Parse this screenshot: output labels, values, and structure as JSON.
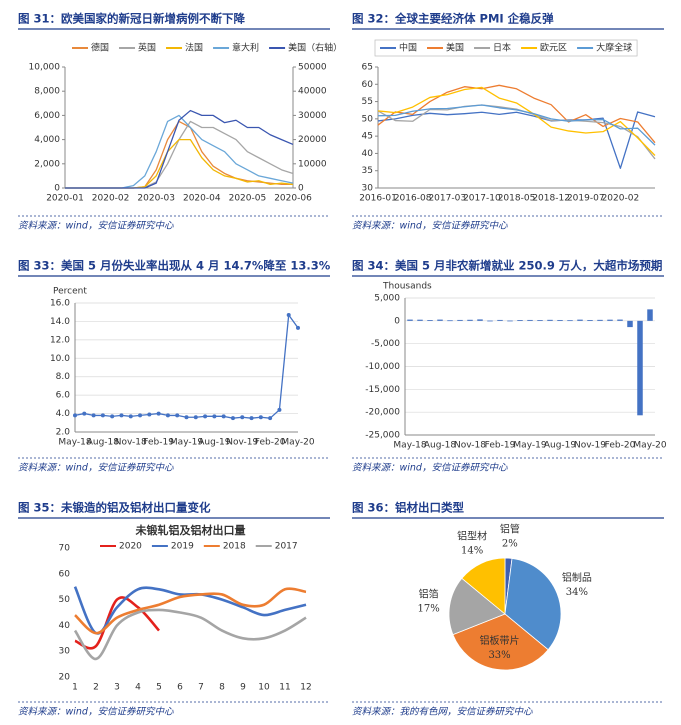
{
  "figures": [
    {
      "title": "图 31：欧美国家的新冠日新增病例不断下降",
      "source": "资料来源：wind，安信证券研究中心",
      "chart_data": {
        "type": "line",
        "legend": "top",
        "grid": false,
        "categories": [
          "2020-01",
          null,
          null,
          null,
          "2020-02",
          null,
          null,
          null,
          "2020-03",
          null,
          null,
          null,
          "2020-04",
          null,
          null,
          null,
          "2020-05",
          null,
          null,
          null,
          "2020-06"
        ],
        "ylim": [
          0,
          10000
        ],
        "yticks": [
          0,
          {
            "value": 2000,
            "label": "2,000"
          },
          {
            "value": 4000,
            "label": "4,000"
          },
          {
            "value": 6000,
            "label": "6,000"
          },
          {
            "value": 8000,
            "label": "8,000"
          },
          {
            "value": 10000,
            "label": "10,000"
          }
        ],
        "y2lim": [
          0,
          50000
        ],
        "y2ticks": [
          0,
          10000,
          20000,
          30000,
          40000,
          50000
        ],
        "series": [
          {
            "name": "德国",
            "color": "#e8893c",
            "values": [
              0,
              0,
              0,
              0,
              0,
              0,
              0,
              100,
              1500,
              4000,
              5500,
              5000,
              3000,
              1800,
              1200,
              800,
              600,
              500,
              400,
              300,
              300
            ]
          },
          {
            "name": "英国",
            "color": "#a6a6a6",
            "values": [
              0,
              0,
              0,
              0,
              0,
              0,
              0,
              50,
              500,
              2000,
              4000,
              5500,
              5000,
              5000,
              4500,
              4000,
              3000,
              2500,
              2000,
              1500,
              1200
            ]
          },
          {
            "name": "法国",
            "color": "#f2b705",
            "values": [
              0,
              0,
              0,
              0,
              0,
              0,
              0,
              100,
              1000,
              3000,
              4000,
              4000,
              2500,
              1500,
              1000,
              800,
              500,
              600,
              300,
              400,
              300
            ]
          },
          {
            "name": "意大利",
            "color": "#6aa7d8",
            "values": [
              0,
              0,
              0,
              0,
              0,
              0,
              200,
              1000,
              3000,
              5500,
              6000,
              5000,
              4000,
              3500,
              3000,
              2000,
              1500,
              1000,
              800,
              600,
              400
            ]
          },
          {
            "name": "美国（右轴）",
            "color": "#3a56b0",
            "axis": "y2",
            "values": [
              0,
              0,
              0,
              0,
              0,
              0,
              0,
              0,
              2000,
              15000,
              28000,
              32000,
              30000,
              30000,
              27000,
              28000,
              25000,
              25000,
              22000,
              20000,
              18000
            ]
          }
        ]
      }
    },
    {
      "title": "图 32：全球主要经济体 PMI 企稳反弹",
      "source": "资料来源：wind，安信证券研究中心",
      "chart_data": {
        "type": "line",
        "legend": "top",
        "grid": false,
        "categories": [
          "2016-01",
          null,
          "2016-08",
          null,
          "2017-03",
          null,
          "2017-10",
          null,
          "2018-05",
          null,
          "2018-12",
          null,
          "2019-07",
          null,
          "2020-02",
          null,
          null
        ],
        "ylim": [
          30,
          65
        ],
        "yticks": [
          30,
          35,
          40,
          45,
          50,
          55,
          60,
          65
        ],
        "series": [
          {
            "name": "中国",
            "color": "#4472c4",
            "values": [
              49.4,
              50.0,
              51.0,
              51.6,
              51.2,
              51.5,
              51.9,
              51.3,
              51.9,
              50.8,
              49.4,
              49.7,
              49.7,
              50.2,
              35.7,
              52.0,
              50.6
            ]
          },
          {
            "name": "美国",
            "color": "#ed7d31",
            "values": [
              48.2,
              52.0,
              51.3,
              55.0,
              57.7,
              59.3,
              58.7,
              59.7,
              58.7,
              56.0,
              54.1,
              49.1,
              51.2,
              47.8,
              50.1,
              49.1,
              43.1
            ]
          },
          {
            "name": "日本",
            "color": "#a5a5a5",
            "values": [
              52.3,
              49.5,
              49.3,
              52.7,
              52.6,
              53.6,
              54.0,
              53.5,
              52.8,
              51.3,
              49.5,
              49.6,
              49.3,
              48.9,
              47.8,
              44.8,
              38.4
            ]
          },
          {
            "name": "欧元区",
            "color": "#ffc000",
            "values": [
              52.3,
              51.8,
              53.4,
              56.2,
              57.0,
              58.5,
              59.1,
              56.0,
              54.6,
              51.4,
              47.6,
              46.5,
              45.9,
              46.3,
              49.2,
              44.5,
              39.4
            ]
          },
          {
            "name": "大摩全球",
            "color": "#5b9bd5",
            "values": [
              50.9,
              51.0,
              52.2,
              52.9,
              53.0,
              53.5,
              54.0,
              53.2,
              52.6,
              51.5,
              50.0,
              49.3,
              49.7,
              49.8,
              47.1,
              47.3,
              42.4
            ]
          }
        ]
      }
    },
    {
      "title": "图 33：美国 5 月份失业率出现从 4 月 14.7%降至 13.3%",
      "source": "资料来源：wind，安信证券研究中心",
      "chart_data": {
        "type": "line",
        "grid": true,
        "markers": true,
        "ylabel": "Percent",
        "categories": [
          "May-18",
          null,
          null,
          "Aug-18",
          null,
          null,
          "Nov-18",
          null,
          null,
          "Feb-19",
          null,
          null,
          "May-19",
          null,
          null,
          "Aug-19",
          null,
          null,
          "Nov-19",
          null,
          null,
          "Feb-20",
          null,
          null,
          "May-20"
        ],
        "ylim": [
          2,
          16
        ],
        "yticks": [
          {
            "value": 2,
            "label": "2.0"
          },
          {
            "value": 4,
            "label": "4.0"
          },
          {
            "value": 6,
            "label": "6.0"
          },
          {
            "value": 8,
            "label": "8.0"
          },
          {
            "value": 10,
            "label": "10.0"
          },
          {
            "value": 12,
            "label": "12.0"
          },
          {
            "value": 14,
            "label": "14.0"
          },
          {
            "value": 16,
            "label": "16.0"
          }
        ],
        "series": [
          {
            "color": "#4472c4",
            "values": [
              3.8,
              4.0,
              3.8,
              3.8,
              3.7,
              3.8,
              3.7,
              3.8,
              3.9,
              4.0,
              3.8,
              3.8,
              3.6,
              3.6,
              3.7,
              3.7,
              3.7,
              3.5,
              3.6,
              3.5,
              3.6,
              3.5,
              4.4,
              14.7,
              13.3
            ]
          }
        ]
      }
    },
    {
      "title": "图 34：美国 5 月非农新增就业 250.9 万人，大超市场预期",
      "source": "资料来源：wind，安信证券研究中心",
      "chart_data": {
        "type": "bar",
        "grid": true,
        "ylabel": "Thousands",
        "color": "#4472c4",
        "categories": [
          "May-18",
          null,
          null,
          "Aug-18",
          null,
          null,
          "Nov-18",
          null,
          null,
          "Feb-19",
          null,
          null,
          "May-19",
          null,
          null,
          "Aug-19",
          null,
          null,
          "Nov-19",
          null,
          null,
          "Feb-20",
          null,
          null,
          "May-20"
        ],
        "values": [
          270,
          248,
          178,
          270,
          118,
          196,
          227,
          312,
          56,
          196,
          62,
          178,
          193,
          168,
          219,
          185,
          131,
          261,
          184,
          214,
          251,
          273,
          -1373,
          -20687,
          2509
        ],
        "ylim": [
          -25000,
          5000
        ],
        "yticks": [
          {
            "value": -25000,
            "label": "-25,000"
          },
          {
            "value": -20000,
            "label": "-20,000"
          },
          {
            "value": -15000,
            "label": "-15,000"
          },
          {
            "value": -10000,
            "label": "-10,000"
          },
          {
            "value": -5000,
            "label": "-5,000"
          },
          0,
          {
            "value": 5000,
            "label": "5,000"
          }
        ]
      }
    },
    {
      "title": "图 35：未锻造的铝及铝材出口量变化",
      "source": "资料来源：wind，安信证券研究中心",
      "chart_data": {
        "type": "line",
        "title": "未锻轧铝及铝材出口量",
        "legend": "top",
        "grid": false,
        "smooth": true,
        "categories": [
          "1",
          "2",
          "3",
          "4",
          "5",
          "6",
          "7",
          "8",
          "9",
          "10",
          "11",
          "12"
        ],
        "ylim": [
          20,
          70
        ],
        "yticks": [
          20,
          30,
          40,
          50,
          60,
          70
        ],
        "series": [
          {
            "name": "2020",
            "color": "#e3211c",
            "values": [
              34,
              32,
              50,
              47,
              38,
              null,
              null,
              null,
              null,
              null,
              null,
              null
            ]
          },
          {
            "name": "2019",
            "color": "#4472c4",
            "values": [
              55,
              37,
              47,
              54,
              54,
              52,
              52,
              50,
              47,
              44,
              46,
              48
            ]
          },
          {
            "name": "2018",
            "color": "#ed7d31",
            "values": [
              44,
              37,
              43,
              46,
              48,
              51,
              52,
              52,
              48,
              48,
              54,
              53
            ]
          },
          {
            "name": "2017",
            "color": "#a5a5a5",
            "values": [
              38,
              27,
              40,
              45,
              46,
              45,
              43,
              38,
              35,
              35,
              38,
              43
            ]
          }
        ]
      }
    },
    {
      "title": "图 36：铝材出口类型",
      "source": "资料来源：我的有色网，安信证券研究中心",
      "chart_data": {
        "type": "pie",
        "categories": [
          "铝管",
          "铝制品",
          "铝板带片",
          "铝箔",
          "铝型材"
        ],
        "values": [
          2,
          34,
          33,
          17,
          14
        ],
        "value_labels": [
          "2%",
          "34%",
          "33%",
          "17%",
          "14%"
        ],
        "colors": [
          "#3f5fb0",
          "#4f8ccc",
          "#ed7d31",
          "#a5a5a5",
          "#ffc000"
        ]
      }
    }
  ]
}
